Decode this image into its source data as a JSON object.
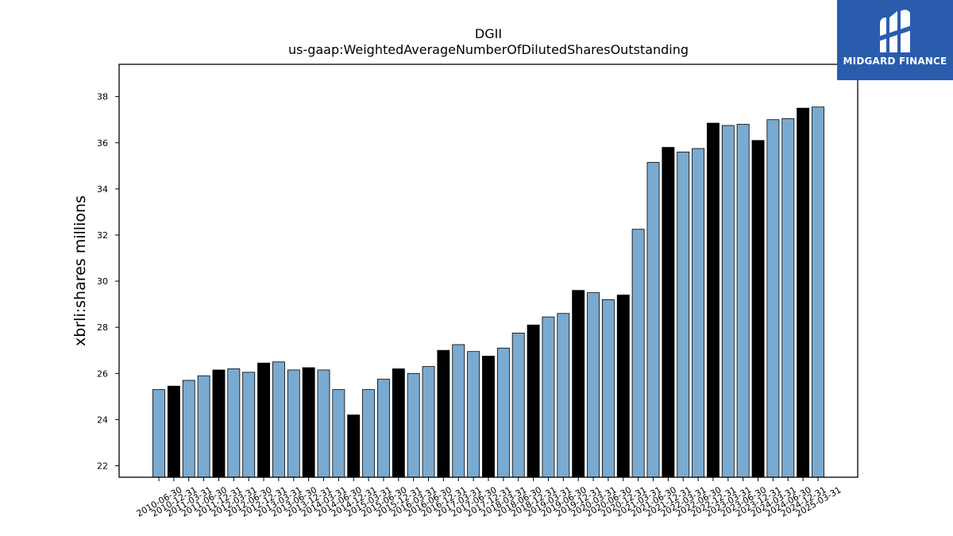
{
  "chart_data": {
    "type": "bar",
    "title": "DGII",
    "subtitle": "us-gaap:WeightedAverageNumberOfDilutedSharesOutstanding",
    "xlabel": "",
    "ylabel": "xbrli:shares millions",
    "ylim": [
      21.5,
      39.4
    ],
    "yticks": [
      "22",
      "24",
      "26",
      "28",
      "30",
      "32",
      "34",
      "36",
      "38"
    ],
    "grid": false,
    "colors": {
      "light": "#7aaad0",
      "dark": "#000000"
    },
    "categories": [
      "2010-06-30",
      "2010-12-31",
      "2011-03-31",
      "2011-06-30",
      "2011-12-31",
      "2012-03-31",
      "2012-06-30",
      "2012-12-31",
      "2013-03-31",
      "2013-06-30",
      "2013-12-31",
      "2014-03-31",
      "2014-06-30",
      "2014-12-31",
      "2015-03-31",
      "2015-06-30",
      "2015-12-31",
      "2016-03-31",
      "2016-06-30",
      "2016-12-31",
      "2017-03-31",
      "2017-06-30",
      "2017-12-31",
      "2018-03-31",
      "2018-06-30",
      "2018-12-31",
      "2019-03-31",
      "2019-06-30",
      "2019-12-31",
      "2020-03-31",
      "2020-06-30",
      "2020-12-31",
      "2021-03-31",
      "2021-06-30",
      "2021-12-31",
      "2022-03-31",
      "2022-06-30",
      "2022-12-31",
      "2023-03-31",
      "2023-06-30",
      "2023-12-31",
      "2024-03-31",
      "2024-06-30",
      "2024-12-31",
      "2025-03-31"
    ],
    "values": [
      25.3,
      25.45,
      25.7,
      25.9,
      26.15,
      26.2,
      26.05,
      26.45,
      26.5,
      26.15,
      26.25,
      26.15,
      25.3,
      24.2,
      25.3,
      25.75,
      26.2,
      26.0,
      26.3,
      27.0,
      27.25,
      26.95,
      26.75,
      27.1,
      27.75,
      28.1,
      28.45,
      28.6,
      29.6,
      29.5,
      29.2,
      29.4,
      32.25,
      35.15,
      35.8,
      35.6,
      35.75,
      36.85,
      36.75,
      36.8,
      36.1,
      37.0,
      37.05,
      37.5,
      37.55
    ],
    "bar_colors": [
      "light",
      "dark",
      "light",
      "light",
      "dark",
      "light",
      "light",
      "dark",
      "light",
      "light",
      "dark",
      "light",
      "light",
      "dark",
      "light",
      "light",
      "dark",
      "light",
      "light",
      "dark",
      "light",
      "light",
      "dark",
      "light",
      "light",
      "dark",
      "light",
      "light",
      "dark",
      "light",
      "light",
      "dark",
      "light",
      "light",
      "dark",
      "light",
      "light",
      "dark",
      "light",
      "light",
      "dark",
      "light",
      "light",
      "dark",
      "light"
    ]
  },
  "logo": {
    "text": "MIDGARD FINANCE",
    "color": "#2a5cae"
  }
}
